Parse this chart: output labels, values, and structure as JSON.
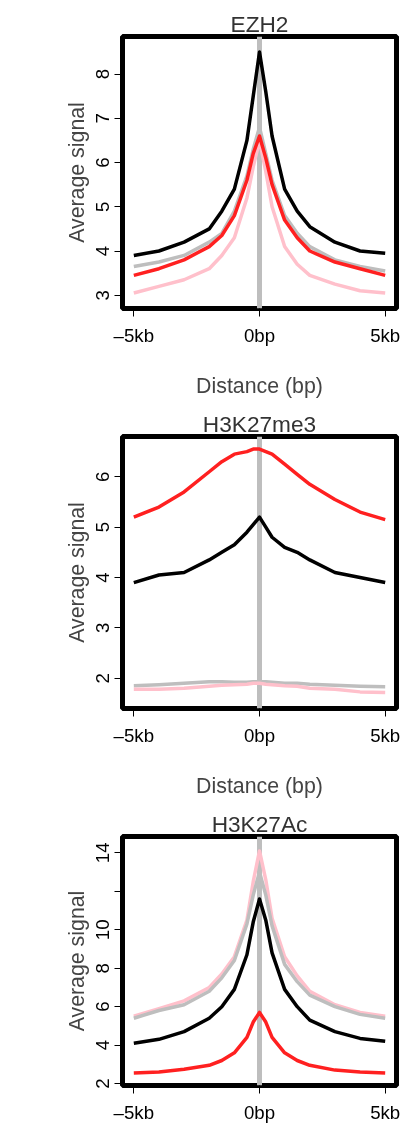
{
  "chart_data": [
    {
      "type": "line",
      "title": "EZH2",
      "xlabel": "Distance (bp)",
      "ylabel": "Average signal",
      "x": [
        -5,
        -4,
        -3,
        -2,
        -1.5,
        -1,
        -0.5,
        -0.25,
        0,
        0.25,
        0.5,
        1,
        1.5,
        2,
        3,
        4,
        5
      ],
      "xlim": [
        -5.45,
        5.45
      ],
      "xticks": [
        {
          "value": -5,
          "label": "–5kb"
        },
        {
          "value": 0,
          "label": "0bp"
        },
        {
          "value": 5,
          "label": "5kb"
        }
      ],
      "ylim": [
        2.7,
        8.85
      ],
      "yticks": [
        3,
        4,
        5,
        6,
        7,
        8
      ],
      "ref_lines": [
        {
          "axis": "x",
          "value": 0,
          "color": "#bebebe"
        }
      ],
      "series": [
        {
          "color": "#000000",
          "values": [
            3.9,
            4.0,
            4.2,
            4.5,
            4.9,
            5.4,
            6.5,
            7.5,
            8.5,
            7.6,
            6.6,
            5.4,
            4.9,
            4.55,
            4.2,
            4.0,
            3.95
          ]
        },
        {
          "color": "#bebebe",
          "values": [
            3.65,
            3.75,
            3.9,
            4.2,
            4.4,
            4.9,
            5.7,
            6.3,
            6.8,
            6.2,
            5.6,
            4.8,
            4.4,
            4.1,
            3.8,
            3.65,
            3.55
          ]
        },
        {
          "color": "#ffc0cb",
          "values": [
            3.05,
            3.2,
            3.35,
            3.6,
            3.9,
            4.3,
            5.2,
            5.9,
            6.5,
            5.8,
            5.0,
            4.1,
            3.7,
            3.45,
            3.25,
            3.1,
            3.05
          ]
        },
        {
          "color": "#ff2020",
          "values": [
            3.45,
            3.6,
            3.8,
            4.1,
            4.35,
            4.8,
            5.6,
            6.2,
            6.6,
            6.1,
            5.5,
            4.7,
            4.3,
            4.0,
            3.75,
            3.6,
            3.45
          ]
        }
      ]
    },
    {
      "type": "line",
      "title": "H3K27me3",
      "xlabel": "Distance (bp)",
      "ylabel": "Average signal",
      "x": [
        -5,
        -4,
        -3,
        -2,
        -1.5,
        -1,
        -0.5,
        -0.25,
        0,
        0.25,
        0.5,
        1,
        1.5,
        2,
        3,
        4,
        5
      ],
      "xlim": [
        -5.45,
        5.45
      ],
      "xticks": [
        {
          "value": -5,
          "label": "–5kb"
        },
        {
          "value": 0,
          "label": "0bp"
        },
        {
          "value": 5,
          "label": "5kb"
        }
      ],
      "ylim": [
        1.4,
        6.8
      ],
      "yticks": [
        2,
        3,
        4,
        5,
        6
      ],
      "ref_lines": [
        {
          "axis": "x",
          "value": 0,
          "color": "#bebebe"
        }
      ],
      "series": [
        {
          "color": "#ff2020",
          "values": [
            5.2,
            5.4,
            5.7,
            6.1,
            6.3,
            6.45,
            6.5,
            6.55,
            6.55,
            6.5,
            6.45,
            6.25,
            6.05,
            5.85,
            5.55,
            5.3,
            5.15
          ]
        },
        {
          "color": "#000000",
          "values": [
            3.9,
            4.05,
            4.1,
            4.35,
            4.5,
            4.65,
            4.9,
            5.05,
            5.2,
            5.0,
            4.8,
            4.6,
            4.5,
            4.35,
            4.1,
            4.0,
            3.9
          ]
        },
        {
          "color": "#bebebe",
          "values": [
            1.85,
            1.87,
            1.9,
            1.93,
            1.93,
            1.92,
            1.92,
            1.93,
            1.93,
            1.93,
            1.92,
            1.9,
            1.9,
            1.88,
            1.86,
            1.84,
            1.83
          ]
        },
        {
          "color": "#ffc0cb",
          "values": [
            1.78,
            1.78,
            1.8,
            1.84,
            1.86,
            1.87,
            1.88,
            1.9,
            1.9,
            1.88,
            1.87,
            1.85,
            1.84,
            1.8,
            1.78,
            1.73,
            1.72
          ]
        }
      ]
    },
    {
      "type": "line",
      "title": "H3K27Ac",
      "ylabel": "Average signal",
      "x": [
        -5,
        -4,
        -3,
        -2,
        -1.5,
        -1,
        -0.5,
        -0.25,
        0,
        0.25,
        0.5,
        1,
        1.5,
        2,
        3,
        4,
        5
      ],
      "xlim": [
        -5.45,
        5.45
      ],
      "xticks": [
        {
          "value": -5,
          "label": "–5kb"
        },
        {
          "value": 0,
          "label": "0bp"
        },
        {
          "value": 5,
          "label": "5kb"
        }
      ],
      "ylim": [
        1.9,
        14.85
      ],
      "yticks": [
        2,
        4,
        6,
        8,
        10,
        {
          "value": 12,
          "label": null
        },
        14
      ],
      "ref_lines": [
        {
          "axis": "x",
          "value": 0,
          "color": "#bebebe"
        }
      ],
      "series": [
        {
          "color": "#ffc0cb",
          "values": [
            5.5,
            5.9,
            6.3,
            7.0,
            7.7,
            8.6,
            10.5,
            12.5,
            14.1,
            12.6,
            10.6,
            8.6,
            7.6,
            6.8,
            6.1,
            5.7,
            5.5
          ]
        },
        {
          "color": "#bebebe",
          "values": [
            5.4,
            5.8,
            6.1,
            6.8,
            7.5,
            8.4,
            10.3,
            11.8,
            13.0,
            11.8,
            10.2,
            8.2,
            7.3,
            6.6,
            6.0,
            5.6,
            5.4
          ]
        },
        {
          "color": "#000000",
          "values": [
            4.1,
            4.3,
            4.7,
            5.4,
            6.0,
            6.9,
            8.7,
            10.4,
            11.6,
            10.5,
            8.8,
            6.9,
            6.0,
            5.3,
            4.7,
            4.35,
            4.2
          ]
        },
        {
          "color": "#ff2020",
          "values": [
            2.55,
            2.6,
            2.75,
            2.95,
            3.2,
            3.6,
            4.4,
            5.2,
            5.7,
            5.2,
            4.4,
            3.6,
            3.2,
            2.95,
            2.7,
            2.6,
            2.55
          ]
        }
      ]
    }
  ]
}
